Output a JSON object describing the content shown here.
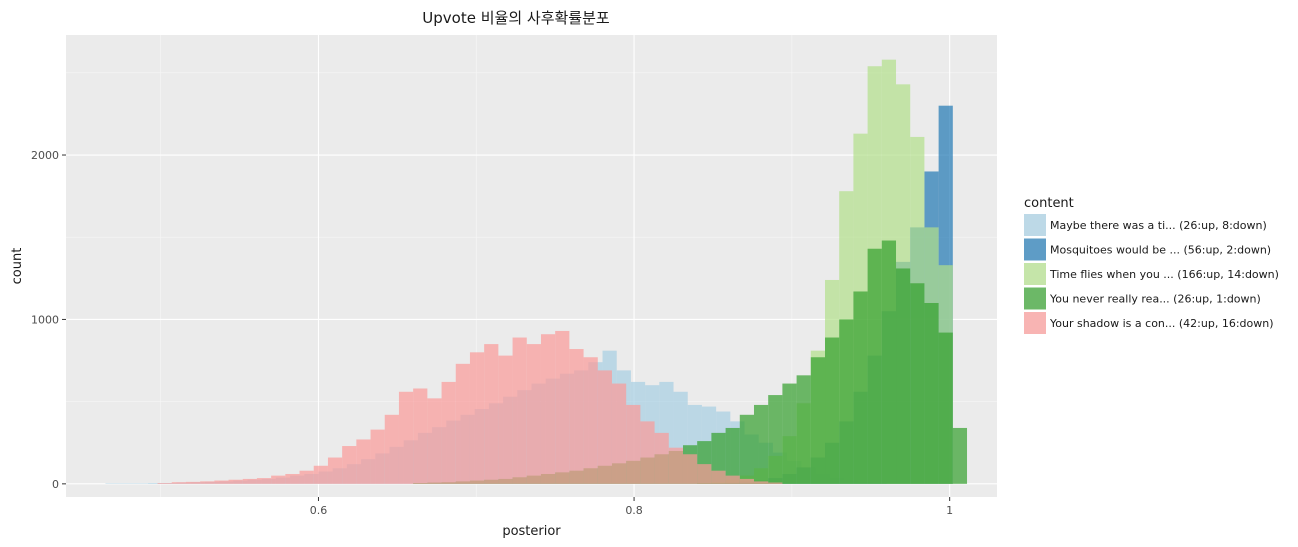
{
  "chart_data": {
    "type": "bar",
    "subtype": "overlaid-histogram",
    "title": "Upvote 비율의 사후확률분포",
    "xlabel": "posterior",
    "ylabel": "count",
    "xlim": [
      0.44,
      1.03
    ],
    "ylim": [
      -80,
      2730
    ],
    "x_ticks": [
      {
        "value": 0.6,
        "label": "0.6"
      },
      {
        "value": 0.8,
        "label": "0.8"
      },
      {
        "value": 1.0,
        "label": "1"
      }
    ],
    "y_ticks": [
      {
        "value": 0,
        "label": "0"
      },
      {
        "value": 1000,
        "label": "1000"
      },
      {
        "value": 2000,
        "label": "2000"
      }
    ],
    "grid": true,
    "background": "#ebebeb",
    "legend": {
      "title": "content",
      "position": "right"
    },
    "series": [
      {
        "name": "Maybe there was a ti... (26:up, 8:down)",
        "color": "#a6cee3",
        "opacity": 0.7,
        "bins": [
          [
            0.465,
            0.474,
            3
          ],
          [
            0.474,
            0.483,
            3
          ],
          [
            0.483,
            0.492,
            3
          ],
          [
            0.492,
            0.501,
            5
          ],
          [
            0.501,
            0.51,
            5
          ],
          [
            0.51,
            0.519,
            8
          ],
          [
            0.519,
            0.528,
            10
          ],
          [
            0.528,
            0.537,
            12
          ],
          [
            0.537,
            0.546,
            15
          ],
          [
            0.546,
            0.555,
            20
          ],
          [
            0.555,
            0.564,
            25
          ],
          [
            0.564,
            0.573,
            30
          ],
          [
            0.573,
            0.582,
            38
          ],
          [
            0.582,
            0.591,
            50
          ],
          [
            0.591,
            0.6,
            60
          ],
          [
            0.6,
            0.609,
            75
          ],
          [
            0.609,
            0.618,
            95
          ],
          [
            0.618,
            0.627,
            120
          ],
          [
            0.627,
            0.636,
            150
          ],
          [
            0.636,
            0.645,
            185
          ],
          [
            0.645,
            0.654,
            225
          ],
          [
            0.654,
            0.663,
            265
          ],
          [
            0.663,
            0.672,
            310
          ],
          [
            0.672,
            0.681,
            345
          ],
          [
            0.681,
            0.69,
            385
          ],
          [
            0.69,
            0.699,
            420
          ],
          [
            0.699,
            0.708,
            455
          ],
          [
            0.708,
            0.717,
            490
          ],
          [
            0.717,
            0.726,
            530
          ],
          [
            0.726,
            0.735,
            570
          ],
          [
            0.735,
            0.744,
            610
          ],
          [
            0.744,
            0.753,
            640
          ],
          [
            0.753,
            0.762,
            670
          ],
          [
            0.762,
            0.771,
            690
          ],
          [
            0.771,
            0.78,
            740
          ],
          [
            0.78,
            0.789,
            810
          ],
          [
            0.789,
            0.798,
            690
          ],
          [
            0.798,
            0.807,
            620
          ],
          [
            0.807,
            0.816,
            600
          ],
          [
            0.816,
            0.825,
            620
          ],
          [
            0.825,
            0.834,
            560
          ],
          [
            0.834,
            0.843,
            480
          ],
          [
            0.843,
            0.852,
            470
          ],
          [
            0.852,
            0.861,
            440
          ],
          [
            0.861,
            0.87,
            380
          ],
          [
            0.87,
            0.879,
            300
          ],
          [
            0.879,
            0.888,
            250
          ],
          [
            0.888,
            0.897,
            190
          ],
          [
            0.897,
            0.906,
            140
          ],
          [
            0.906,
            0.915,
            100
          ],
          [
            0.915,
            0.924,
            60
          ],
          [
            0.924,
            0.933,
            35
          ],
          [
            0.933,
            0.942,
            20
          ],
          [
            0.942,
            0.951,
            10
          ],
          [
            0.951,
            0.96,
            5
          ]
        ]
      },
      {
        "name": "Mosquitoes would be ... (56:up, 2:down)",
        "color": "#1f78b4",
        "opacity": 0.7,
        "bins": [
          [
            0.84,
            0.849,
            3
          ],
          [
            0.849,
            0.858,
            5
          ],
          [
            0.858,
            0.867,
            8
          ],
          [
            0.867,
            0.876,
            12
          ],
          [
            0.876,
            0.885,
            20
          ],
          [
            0.885,
            0.894,
            35
          ],
          [
            0.894,
            0.903,
            60
          ],
          [
            0.903,
            0.912,
            100
          ],
          [
            0.912,
            0.921,
            160
          ],
          [
            0.921,
            0.93,
            250
          ],
          [
            0.93,
            0.939,
            380
          ],
          [
            0.939,
            0.948,
            560
          ],
          [
            0.948,
            0.957,
            780
          ],
          [
            0.957,
            0.966,
            1050
          ],
          [
            0.966,
            0.975,
            1350
          ],
          [
            0.975,
            0.984,
            1560
          ],
          [
            0.984,
            0.993,
            1900
          ],
          [
            0.993,
            1.002,
            2300
          ]
        ]
      },
      {
        "name": "Time flies when you ... (166:up, 14:down)",
        "color": "#b2df8a",
        "opacity": 0.7,
        "bins": [
          [
            0.84,
            0.849,
            5
          ],
          [
            0.849,
            0.858,
            12
          ],
          [
            0.858,
            0.867,
            25
          ],
          [
            0.867,
            0.876,
            50
          ],
          [
            0.876,
            0.885,
            95
          ],
          [
            0.885,
            0.894,
            170
          ],
          [
            0.894,
            0.903,
            290
          ],
          [
            0.903,
            0.912,
            490
          ],
          [
            0.912,
            0.921,
            810
          ],
          [
            0.921,
            0.93,
            1240
          ],
          [
            0.93,
            0.939,
            1780
          ],
          [
            0.939,
            0.948,
            2130
          ],
          [
            0.948,
            0.957,
            2540
          ],
          [
            0.957,
            0.966,
            2580
          ],
          [
            0.966,
            0.975,
            2430
          ],
          [
            0.975,
            0.984,
            2110
          ],
          [
            0.984,
            0.993,
            1560
          ],
          [
            0.993,
            1.002,
            1330
          ]
        ]
      },
      {
        "name": "You never really rea... (26:up, 1:down)",
        "color": "#33a02c",
        "opacity": 0.7,
        "bins": [
          [
            0.66,
            0.669,
            5
          ],
          [
            0.669,
            0.678,
            8
          ],
          [
            0.678,
            0.687,
            10
          ],
          [
            0.687,
            0.696,
            15
          ],
          [
            0.696,
            0.705,
            20
          ],
          [
            0.705,
            0.714,
            25
          ],
          [
            0.714,
            0.723,
            30
          ],
          [
            0.723,
            0.732,
            40
          ],
          [
            0.732,
            0.741,
            50
          ],
          [
            0.741,
            0.75,
            60
          ],
          [
            0.75,
            0.759,
            70
          ],
          [
            0.759,
            0.768,
            80
          ],
          [
            0.768,
            0.777,
            95
          ],
          [
            0.777,
            0.786,
            110
          ],
          [
            0.786,
            0.795,
            125
          ],
          [
            0.795,
            0.804,
            140
          ],
          [
            0.804,
            0.813,
            160
          ],
          [
            0.813,
            0.822,
            180
          ],
          [
            0.822,
            0.831,
            200
          ],
          [
            0.831,
            0.84,
            235
          ],
          [
            0.84,
            0.849,
            260
          ],
          [
            0.849,
            0.858,
            310
          ],
          [
            0.858,
            0.867,
            340
          ],
          [
            0.867,
            0.876,
            420
          ],
          [
            0.876,
            0.885,
            480
          ],
          [
            0.885,
            0.894,
            540
          ],
          [
            0.894,
            0.903,
            610
          ],
          [
            0.903,
            0.912,
            660
          ],
          [
            0.912,
            0.921,
            770
          ],
          [
            0.921,
            0.93,
            890
          ],
          [
            0.93,
            0.939,
            1000
          ],
          [
            0.939,
            0.948,
            1170
          ],
          [
            0.948,
            0.957,
            1430
          ],
          [
            0.957,
            0.966,
            1480
          ],
          [
            0.966,
            0.975,
            1310
          ],
          [
            0.975,
            0.984,
            1220
          ],
          [
            0.984,
            0.993,
            1100
          ],
          [
            0.993,
            1.002,
            920
          ],
          [
            1.002,
            1.011,
            340
          ]
        ]
      },
      {
        "name": "Your shadow is a con... (42:up, 16:down)",
        "color": "#fb9a99",
        "opacity": 0.7,
        "bins": [
          [
            0.498,
            0.507,
            5
          ],
          [
            0.507,
            0.516,
            10
          ],
          [
            0.516,
            0.525,
            12
          ],
          [
            0.525,
            0.534,
            15
          ],
          [
            0.534,
            0.543,
            20
          ],
          [
            0.543,
            0.552,
            25
          ],
          [
            0.552,
            0.561,
            30
          ],
          [
            0.561,
            0.57,
            35
          ],
          [
            0.57,
            0.579,
            50
          ],
          [
            0.579,
            0.588,
            60
          ],
          [
            0.588,
            0.597,
            80
          ],
          [
            0.597,
            0.606,
            110
          ],
          [
            0.606,
            0.615,
            160
          ],
          [
            0.615,
            0.624,
            230
          ],
          [
            0.624,
            0.633,
            270
          ],
          [
            0.633,
            0.642,
            330
          ],
          [
            0.642,
            0.651,
            420
          ],
          [
            0.651,
            0.66,
            560
          ],
          [
            0.66,
            0.669,
            580
          ],
          [
            0.669,
            0.678,
            520
          ],
          [
            0.678,
            0.687,
            620
          ],
          [
            0.687,
            0.696,
            730
          ],
          [
            0.696,
            0.705,
            800
          ],
          [
            0.705,
            0.714,
            850
          ],
          [
            0.714,
            0.723,
            780
          ],
          [
            0.723,
            0.732,
            890
          ],
          [
            0.732,
            0.741,
            850
          ],
          [
            0.741,
            0.75,
            910
          ],
          [
            0.75,
            0.759,
            930
          ],
          [
            0.759,
            0.768,
            820
          ],
          [
            0.768,
            0.777,
            770
          ],
          [
            0.777,
            0.786,
            690
          ],
          [
            0.786,
            0.795,
            610
          ],
          [
            0.795,
            0.804,
            480
          ],
          [
            0.804,
            0.813,
            380
          ],
          [
            0.813,
            0.822,
            310
          ],
          [
            0.822,
            0.831,
            220
          ],
          [
            0.831,
            0.84,
            180
          ],
          [
            0.84,
            0.849,
            120
          ],
          [
            0.849,
            0.858,
            80
          ],
          [
            0.858,
            0.867,
            50
          ],
          [
            0.867,
            0.876,
            30
          ],
          [
            0.876,
            0.885,
            15
          ],
          [
            0.885,
            0.894,
            8
          ]
        ]
      }
    ]
  }
}
